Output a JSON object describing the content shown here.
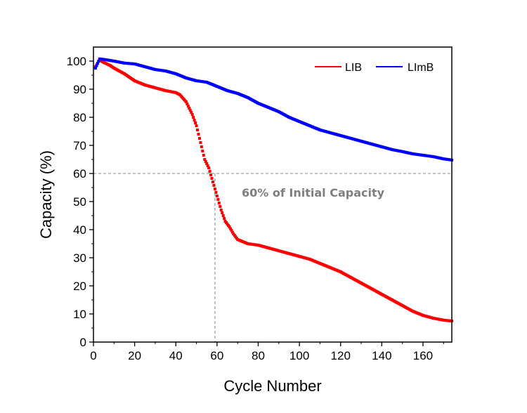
{
  "chart_data": {
    "type": "scatter",
    "title": "",
    "xlabel": "Cycle Number",
    "ylabel": "Capacity (%)",
    "xlim": [
      0,
      174
    ],
    "ylim": [
      0,
      105
    ],
    "xticks": [
      0,
      20,
      40,
      60,
      80,
      100,
      120,
      140,
      160
    ],
    "yticks": [
      0,
      10,
      20,
      30,
      40,
      50,
      60,
      70,
      80,
      90,
      100
    ],
    "grid": false,
    "legend_position": "top-right",
    "reference_line": {
      "y": 60,
      "x_cross": 59
    },
    "annotation": "60% of Initial Capacity",
    "series": [
      {
        "name": "LIB",
        "color": "#ff0000",
        "points": [
          [
            1,
            98
          ],
          [
            3,
            100.5
          ],
          [
            5,
            99.5
          ],
          [
            8,
            98.5
          ],
          [
            10,
            97.5
          ],
          [
            15,
            95.5
          ],
          [
            20,
            93
          ],
          [
            25,
            91.5
          ],
          [
            30,
            90.5
          ],
          [
            35,
            89.5
          ],
          [
            40,
            88.8
          ],
          [
            42,
            88
          ],
          [
            45,
            85.5
          ],
          [
            48,
            81
          ],
          [
            50,
            77
          ],
          [
            52,
            71
          ],
          [
            54,
            65
          ],
          [
            56,
            62
          ],
          [
            58,
            57
          ],
          [
            60,
            52
          ],
          [
            62,
            47
          ],
          [
            64,
            43
          ],
          [
            66,
            41
          ],
          [
            68,
            38.5
          ],
          [
            70,
            36.5
          ],
          [
            75,
            35
          ],
          [
            80,
            34.5
          ],
          [
            85,
            33.5
          ],
          [
            90,
            32.5
          ],
          [
            95,
            31.5
          ],
          [
            100,
            30.5
          ],
          [
            105,
            29.5
          ],
          [
            110,
            28
          ],
          [
            115,
            26.5
          ],
          [
            120,
            25
          ],
          [
            125,
            23
          ],
          [
            130,
            21
          ],
          [
            135,
            19
          ],
          [
            140,
            17
          ],
          [
            145,
            15
          ],
          [
            150,
            13
          ],
          [
            155,
            11
          ],
          [
            160,
            9.5
          ],
          [
            165,
            8.5
          ],
          [
            170,
            7.8
          ],
          [
            174,
            7.5
          ]
        ]
      },
      {
        "name": "LImB",
        "color": "#0000ff",
        "points": [
          [
            1,
            97.5
          ],
          [
            3,
            100.8
          ],
          [
            5,
            100.6
          ],
          [
            10,
            100
          ],
          [
            15,
            99.3
          ],
          [
            20,
            99
          ],
          [
            25,
            98
          ],
          [
            30,
            97
          ],
          [
            35,
            96.5
          ],
          [
            40,
            95.5
          ],
          [
            45,
            94
          ],
          [
            50,
            93
          ],
          [
            55,
            92.5
          ],
          [
            60,
            91
          ],
          [
            65,
            89.5
          ],
          [
            70,
            88.5
          ],
          [
            75,
            87
          ],
          [
            80,
            85
          ],
          [
            85,
            83.5
          ],
          [
            90,
            82
          ],
          [
            95,
            80
          ],
          [
            100,
            78.5
          ],
          [
            105,
            77
          ],
          [
            110,
            75.5
          ],
          [
            115,
            74.5
          ],
          [
            120,
            73.5
          ],
          [
            125,
            72.5
          ],
          [
            130,
            71.5
          ],
          [
            135,
            70.5
          ],
          [
            140,
            69.5
          ],
          [
            145,
            68.5
          ],
          [
            150,
            67.8
          ],
          [
            155,
            67
          ],
          [
            160,
            66.5
          ],
          [
            165,
            66
          ],
          [
            170,
            65.2
          ],
          [
            174,
            64.8
          ]
        ]
      }
    ]
  }
}
